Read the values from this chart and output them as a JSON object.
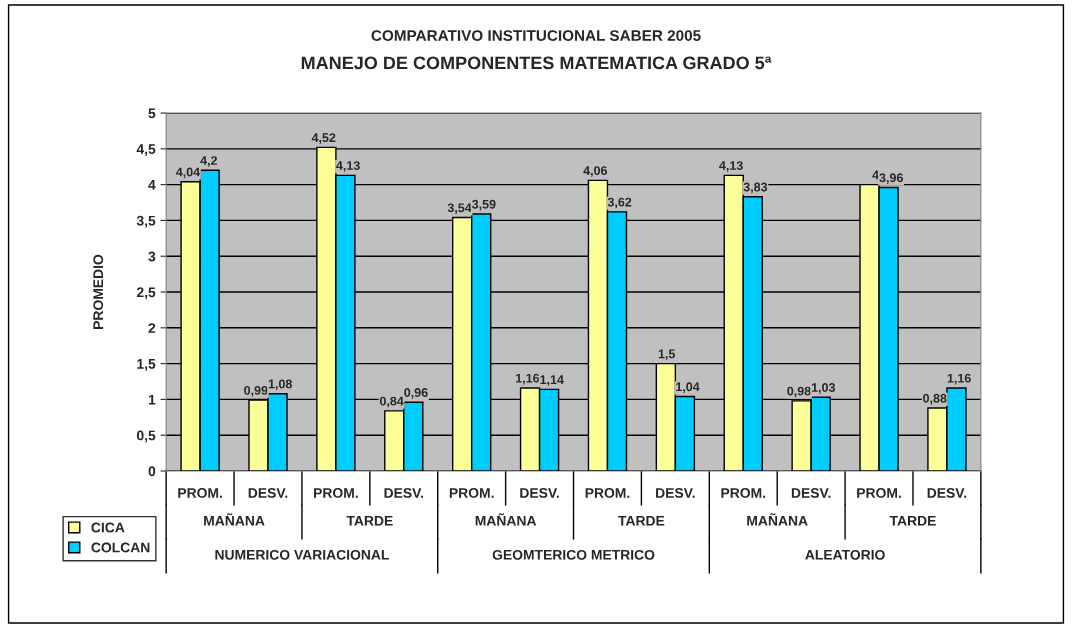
{
  "chart_data": {
    "type": "bar",
    "title": "COMPARATIVO INSTITUCIONAL SABER 2005",
    "subtitle": "MANEJO DE COMPONENTES MATEMATICA GRADO 5ª",
    "ylabel": "PROMEDIO",
    "categories": [
      "PROM.",
      "DESV.",
      "PROM.",
      "DESV.",
      "PROM.",
      "DESV.",
      "PROM.",
      "DESV.",
      "PROM.",
      "DESV.",
      "PROM.",
      "DESV."
    ],
    "series": [
      {
        "name": "CICA",
        "color": "#ffff99",
        "values": [
          4.04,
          0.99,
          4.52,
          0.84,
          3.54,
          1.16,
          4.06,
          1.5,
          4.13,
          0.98,
          4,
          0.88
        ],
        "value_labels": [
          "4,04",
          "0,99",
          "4,52",
          "0,84",
          "3,54",
          "1,16",
          "4,06",
          "1,5",
          "4,13",
          "0,98",
          "4",
          "0,88"
        ]
      },
      {
        "name": "COLCAN",
        "color": "#00ccff",
        "values": [
          4.2,
          1.08,
          4.13,
          0.96,
          3.59,
          1.14,
          3.62,
          1.04,
          3.83,
          1.03,
          3.96,
          1.16
        ],
        "value_labels": [
          "4,2",
          "1,08",
          "4,13",
          "0,96",
          "3,59",
          "1,14",
          "3,62",
          "1,04",
          "3,83",
          "1,03",
          "3,96",
          "1,16"
        ]
      }
    ],
    "annotations": [
      "MAÑANA",
      "TARDE",
      "MAÑANA",
      "TARDE",
      "MAÑANA",
      "TARDE",
      "NUMERICO VARIACIONAL",
      "GEOMTERICO METRICO",
      "ALEATORIO"
    ],
    "ylim": [
      0,
      5
    ],
    "yticks": [
      0,
      {
        "value": 0.5,
        "label": "0,5"
      },
      1,
      {
        "value": 1.5,
        "label": "1,5"
      },
      2,
      {
        "value": 2.5,
        "label": "2,5"
      },
      3,
      {
        "value": 3.5,
        "label": "3,5"
      },
      4,
      {
        "value": 4.5,
        "label": "4,5"
      },
      5
    ],
    "grid": "y",
    "legend": "bottom left"
  }
}
